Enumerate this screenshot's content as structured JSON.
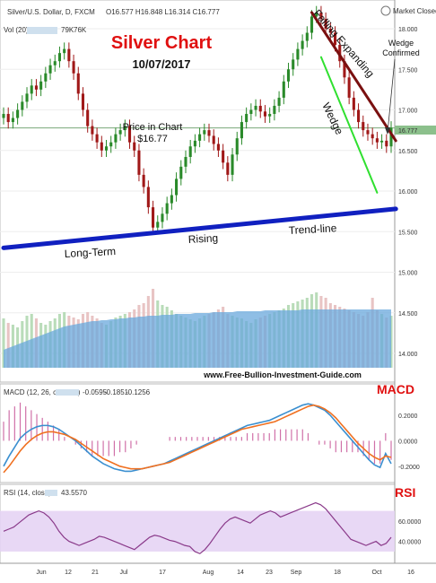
{
  "header": {
    "symbol": "Silver/U.S. Dollar, D, FXCM",
    "ohlc": "O16.577 H16.848 L16.314 C16.777",
    "vol_label": "Vol (20)",
    "vol_vals": [
      "79K",
      "76K"
    ],
    "market_closed": "Market Closed"
  },
  "annotations": {
    "title": "Silver Chart",
    "date": "10/07/2017",
    "price_label": "Price in Chart",
    "price_value": "$16.77",
    "falling_expanding": "Falling Expanding",
    "wedge": "Wedge",
    "wedge_confirmed_1": "Wedge",
    "wedge_confirmed_2": "Confirmed",
    "trend_long": "Long-Term",
    "trend_rising": "Rising",
    "trend_line": "Trend-line",
    "website": "www.Free-Bullion-Investment-Guide.com"
  },
  "price_axis": {
    "ticks": [
      "18.000",
      "17.500",
      "17.000",
      "16.500",
      "16.000",
      "15.500",
      "15.000",
      "14.500",
      "14.000"
    ],
    "current": "16.777"
  },
  "macd_panel": {
    "title": "MACD",
    "legend": "MACD (12, 26, close, 9)",
    "values": [
      "-0.0595",
      "-0.1851",
      "-0.1256"
    ],
    "ticks": [
      "0.2000",
      "0.0000",
      "-0.2000"
    ]
  },
  "rsi_panel": {
    "title": "RSI",
    "legend": "RSI (14, close)",
    "value": "43.5570",
    "ticks": [
      "60.0000",
      "40.0000"
    ]
  },
  "x_axis": {
    "labels": [
      "Jun",
      "12",
      "21",
      "Jul",
      "17",
      "Aug",
      "14",
      "23",
      "Sep",
      "18",
      "Oct",
      "16"
    ]
  },
  "colors": {
    "up": "#2a8a2a",
    "down": "#a01818",
    "macd": "#3a8fd0",
    "signal": "#f07020",
    "rsi": "#8a3a8a",
    "trend": "#1020c0",
    "wedge_upper": "#7a1010",
    "wedge_lower": "#30e030",
    "title": "#e01010",
    "volume": "#6aa8dc"
  },
  "chart_data": [
    {
      "type": "candlestick",
      "title": "Silver Chart",
      "series_name": "Silver/U.S. Dollar, D, FXCM",
      "ylim": [
        13.75,
        18.25
      ],
      "x_labels": [
        "Jun",
        "12",
        "21",
        "Jul",
        "17",
        "Aug",
        "14",
        "23",
        "Sep",
        "18",
        "Oct",
        "16"
      ],
      "close": [
        16.95,
        16.85,
        16.9,
        17.0,
        17.1,
        17.2,
        17.3,
        17.25,
        17.35,
        17.45,
        17.55,
        17.6,
        17.7,
        17.75,
        17.6,
        17.45,
        17.2,
        17.0,
        16.8,
        16.7,
        16.6,
        16.5,
        16.55,
        16.6,
        16.7,
        16.75,
        16.8,
        16.6,
        16.5,
        16.2,
        16.05,
        15.8,
        15.55,
        15.62,
        15.72,
        15.85,
        15.95,
        16.15,
        16.3,
        16.42,
        16.55,
        16.62,
        16.7,
        16.75,
        16.68,
        16.58,
        16.5,
        16.35,
        16.2,
        16.45,
        16.65,
        16.85,
        16.95,
        17.0,
        17.05,
        16.98,
        16.92,
        16.95,
        17.05,
        17.15,
        17.35,
        17.5,
        17.62,
        17.75,
        17.85,
        17.95,
        18.15,
        18.2,
        18.12,
        18.0,
        17.95,
        17.8,
        17.6,
        17.4,
        17.15,
        17.0,
        16.85,
        16.75,
        16.7,
        16.65,
        16.6,
        16.62,
        16.55,
        16.78
      ],
      "extra_series": [
        {
          "name": "Long-Term Rising Trend-line",
          "points": [
            [
              0,
              15.3
            ],
            [
              84,
              15.78
            ]
          ]
        },
        {
          "name": "Falling Expanding Wedge (upper)",
          "points": [
            [
              66,
              18.2
            ],
            [
              84,
              16.62
            ]
          ]
        },
        {
          "name": "Falling Expanding Wedge (lower)",
          "points": [
            [
              68,
              17.65
            ],
            [
              80,
              15.98
            ]
          ]
        }
      ]
    },
    {
      "type": "bar",
      "title": "Vol (20)",
      "values": [
        55,
        50,
        48,
        45,
        52,
        58,
        60,
        55,
        50,
        48,
        52,
        55,
        60,
        62,
        58,
        56,
        54,
        60,
        62,
        58,
        55,
        50,
        48,
        52,
        56,
        58,
        60,
        62,
        65,
        70,
        72,
        80,
        88,
        75,
        70,
        68,
        64,
        60,
        58,
        56,
        54,
        52,
        55,
        58,
        60,
        62,
        65,
        68,
        60,
        58,
        56,
        55,
        52,
        50,
        54,
        56,
        58,
        60,
        62,
        64,
        66,
        70,
        72,
        74,
        76,
        78,
        82,
        84,
        80,
        78,
        72,
        70,
        68,
        66,
        64,
        62,
        60,
        58,
        62,
        78,
        64,
        60,
        56,
        58
      ],
      "extra_series": [
        {
          "name": "Vol MA",
          "values": [
            20,
            22,
            24,
            26,
            28,
            30,
            32,
            34,
            36,
            38,
            40,
            42,
            44,
            46,
            47,
            48,
            49,
            50,
            51,
            52,
            52,
            53,
            53,
            54,
            54,
            55,
            55,
            56,
            56,
            57,
            57,
            58,
            58,
            58,
            59,
            59,
            59,
            60,
            60,
            60,
            60,
            61,
            61,
            61,
            61,
            62,
            62,
            62,
            62,
            62,
            63,
            63,
            63,
            63,
            63,
            63,
            64,
            64,
            64,
            64,
            64,
            64,
            64,
            64,
            65,
            65,
            65,
            65,
            65,
            65,
            65,
            65,
            65,
            65,
            65,
            65,
            65,
            65,
            65,
            65,
            65,
            65,
            65,
            65
          ]
        }
      ]
    },
    {
      "type": "line",
      "title": "MACD (12, 26, close, 9)",
      "ylim": [
        -0.3,
        0.32
      ],
      "series": [
        {
          "name": "MACD",
          "values": [
            -0.2,
            -0.12,
            -0.05,
            0.02,
            0.06,
            0.09,
            0.11,
            0.12,
            0.12,
            0.11,
            0.09,
            0.06,
            0.03,
            0.0,
            -0.04,
            -0.08,
            -0.12,
            -0.15,
            -0.18,
            -0.2,
            -0.22,
            -0.23,
            -0.24,
            -0.24,
            -0.23,
            -0.22,
            -0.21,
            -0.2,
            -0.19,
            -0.18,
            -0.16,
            -0.14,
            -0.12,
            -0.1,
            -0.08,
            -0.06,
            -0.04,
            -0.02,
            0.0,
            0.02,
            0.04,
            0.06,
            0.08,
            0.1,
            0.12,
            0.13,
            0.14,
            0.15,
            0.16,
            0.18,
            0.2,
            0.22,
            0.24,
            0.26,
            0.28,
            0.29,
            0.28,
            0.26,
            0.24,
            0.2,
            0.15,
            0.1,
            0.05,
            0.0,
            -0.05,
            -0.1,
            -0.15,
            -0.19,
            -0.21,
            -0.1,
            -0.18
          ]
        },
        {
          "name": "Signal",
          "values": [
            -0.25,
            -0.2,
            -0.14,
            -0.08,
            -0.03,
            0.01,
            0.04,
            0.06,
            0.07,
            0.07,
            0.06,
            0.05,
            0.03,
            0.01,
            -0.02,
            -0.05,
            -0.08,
            -0.11,
            -0.14,
            -0.16,
            -0.18,
            -0.2,
            -0.21,
            -0.22,
            -0.22,
            -0.22,
            -0.21,
            -0.2,
            -0.19,
            -0.18,
            -0.17,
            -0.15,
            -0.13,
            -0.11,
            -0.09,
            -0.07,
            -0.05,
            -0.03,
            -0.01,
            0.01,
            0.03,
            0.05,
            0.07,
            0.09,
            0.1,
            0.11,
            0.12,
            0.13,
            0.14,
            0.15,
            0.17,
            0.19,
            0.21,
            0.23,
            0.25,
            0.27,
            0.28,
            0.27,
            0.25,
            0.22,
            0.18,
            0.13,
            0.08,
            0.03,
            -0.02,
            -0.06,
            -0.1,
            -0.13,
            -0.15,
            -0.12,
            -0.13
          ]
        }
      ]
    },
    {
      "type": "line",
      "title": "RSI (14, close)",
      "ylim": [
        22,
        82
      ],
      "series": [
        {
          "name": "RSI",
          "values": [
            50,
            52,
            54,
            58,
            62,
            66,
            68,
            70,
            68,
            64,
            58,
            50,
            44,
            40,
            38,
            36,
            38,
            40,
            42,
            45,
            44,
            42,
            40,
            38,
            36,
            34,
            32,
            36,
            40,
            44,
            46,
            45,
            43,
            41,
            40,
            38,
            36,
            35,
            30,
            28,
            32,
            38,
            45,
            52,
            58,
            62,
            64,
            62,
            60,
            58,
            62,
            66,
            68,
            70,
            68,
            64,
            66,
            68,
            70,
            72,
            74,
            76,
            78,
            76,
            72,
            66,
            60,
            54,
            48,
            42,
            40,
            38,
            36,
            38,
            40,
            36,
            38,
            44
          ]
        }
      ]
    }
  ]
}
